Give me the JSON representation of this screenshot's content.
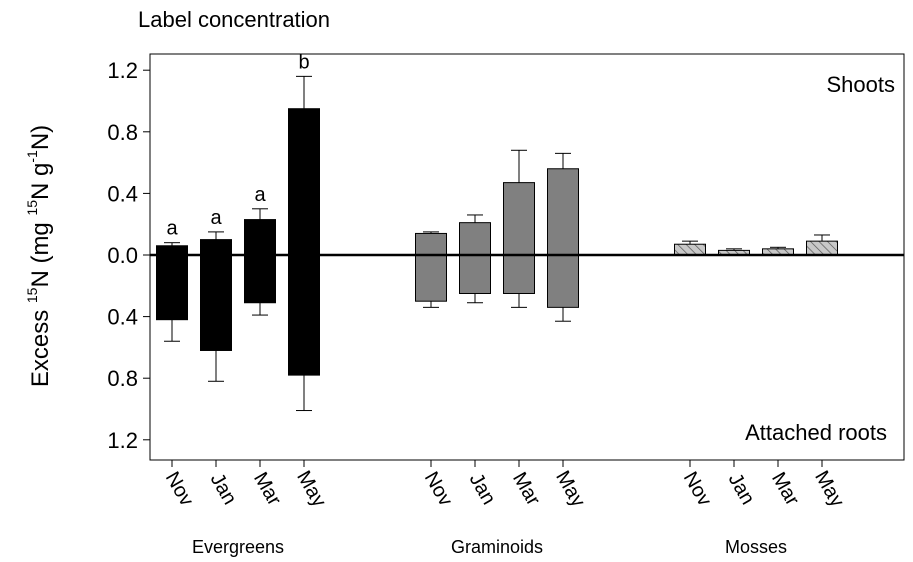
{
  "chart_data": {
    "type": "bar",
    "title": "Label concentration",
    "ylabel": {
      "pre": "Excess ",
      "sup1": "15",
      "mid1": "N (mg ",
      "sup2": "15",
      "mid2": "N g",
      "sup3": "-1",
      "post": "N)"
    },
    "ylim": [
      -1.35,
      1.35
    ],
    "y_ticks": [
      {
        "value": 1.2,
        "label": "1.2"
      },
      {
        "value": 0.8,
        "label": "0.8"
      },
      {
        "value": 0.4,
        "label": "0.4"
      },
      {
        "value": 0.0,
        "label": "0.0"
      },
      {
        "value": -0.4,
        "label": "0.4"
      },
      {
        "value": -0.8,
        "label": "0.8"
      },
      {
        "value": -1.2,
        "label": "1.2"
      }
    ],
    "panel_labels": {
      "top": "Shoots",
      "bottom": "Attached roots"
    },
    "groups": [
      {
        "name": "Evergreens",
        "fill": "#000000",
        "pattern": "solid",
        "bars": [
          {
            "label": "Nov",
            "shoots": 0.06,
            "shoots_err": 0.02,
            "roots": 0.42,
            "roots_err": 0.14,
            "letter": "a"
          },
          {
            "label": "Jan",
            "shoots": 0.1,
            "shoots_err": 0.05,
            "roots": 0.62,
            "roots_err": 0.2,
            "letter": "a"
          },
          {
            "label": "Mar",
            "shoots": 0.23,
            "shoots_err": 0.07,
            "roots": 0.31,
            "roots_err": 0.08,
            "letter": "a"
          },
          {
            "label": "May",
            "shoots": 0.95,
            "shoots_err": 0.21,
            "roots": 0.78,
            "roots_err": 0.23,
            "letter": "b"
          }
        ]
      },
      {
        "name": "Graminoids",
        "fill": "#808080",
        "pattern": "solid",
        "bars": [
          {
            "label": "Nov",
            "shoots": 0.14,
            "shoots_err": 0.01,
            "roots": 0.3,
            "roots_err": 0.04,
            "letter": ""
          },
          {
            "label": "Jan",
            "shoots": 0.21,
            "shoots_err": 0.05,
            "roots": 0.25,
            "roots_err": 0.06,
            "letter": ""
          },
          {
            "label": "Mar",
            "shoots": 0.47,
            "shoots_err": 0.21,
            "roots": 0.25,
            "roots_err": 0.09,
            "letter": ""
          },
          {
            "label": "May",
            "shoots": 0.56,
            "shoots_err": 0.1,
            "roots": 0.34,
            "roots_err": 0.09,
            "letter": ""
          }
        ]
      },
      {
        "name": "Mosses",
        "fill": "#c0c0c0",
        "pattern": "hatched",
        "bars": [
          {
            "label": "Nov",
            "shoots": 0.07,
            "shoots_err": 0.02,
            "roots": 0,
            "roots_err": 0,
            "letter": ""
          },
          {
            "label": "Jan",
            "shoots": 0.03,
            "shoots_err": 0.01,
            "roots": 0,
            "roots_err": 0,
            "letter": ""
          },
          {
            "label": "Mar",
            "shoots": 0.04,
            "shoots_err": 0.01,
            "roots": 0,
            "roots_err": 0,
            "letter": ""
          },
          {
            "label": "May",
            "shoots": 0.09,
            "shoots_err": 0.04,
            "roots": 0,
            "roots_err": 0,
            "letter": ""
          }
        ]
      }
    ],
    "grid": false,
    "legend": "none"
  }
}
